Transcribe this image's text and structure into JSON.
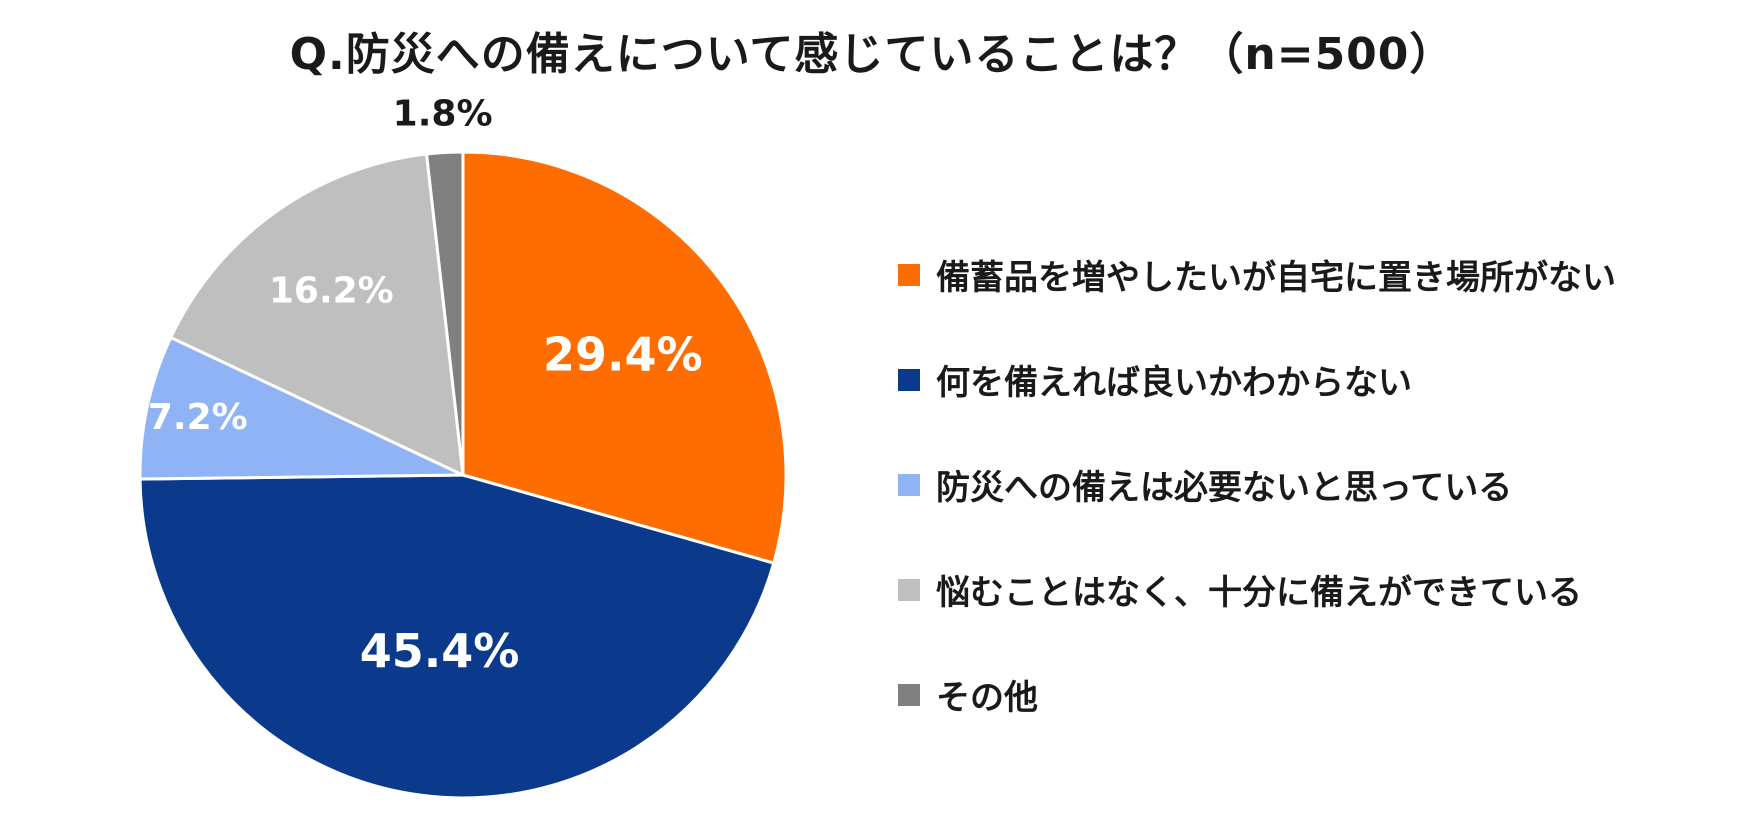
{
  "chart_data": {
    "type": "pie",
    "title": "Q.防災への備えについて感じていることは？（n=500）",
    "legend_position": "right",
    "slices": [
      {
        "label": "備蓄品を増やしたいが自宅に置き場所がない",
        "value": 29.4,
        "display": "29.4%",
        "color": "#ff6d00",
        "text_color": "#ffffff"
      },
      {
        "label": "何を備えれば良いかわからない",
        "value": 45.4,
        "display": "45.4%",
        "color": "#0b3a8c",
        "text_color": "#ffffff"
      },
      {
        "label": "防災への備えは必要ないと思っている",
        "value": 7.2,
        "display": "7.2%",
        "color": "#8fb3f5",
        "text_color": "#ffffff"
      },
      {
        "label": "悩むことはなく、十分に備えができている",
        "value": 16.2,
        "display": "16.2%",
        "color": "#bfbfbf",
        "text_color": "#ffffff"
      },
      {
        "label": "その他",
        "value": 1.8,
        "display": "1.8%",
        "color": "#808080",
        "text_color": "#1a1a1a"
      }
    ]
  }
}
